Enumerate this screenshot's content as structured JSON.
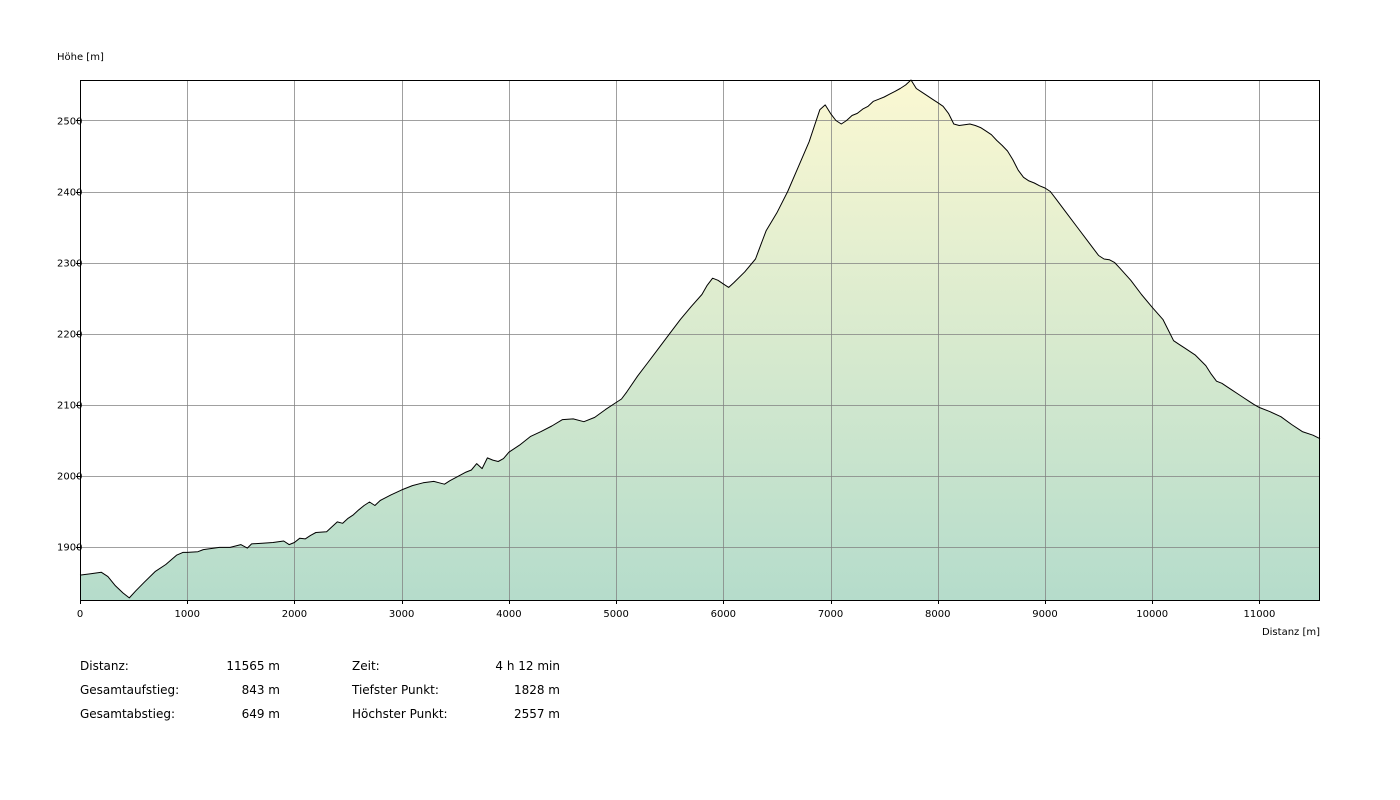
{
  "chart_data": {
    "type": "area",
    "ylabel": "Höhe [m]",
    "xlabel": "Distanz [m]",
    "xlim": [
      0,
      11565
    ],
    "ylim": [
      1825,
      2557
    ],
    "x_ticks": [
      0,
      1000,
      2000,
      3000,
      4000,
      5000,
      6000,
      7000,
      8000,
      9000,
      10000,
      11000
    ],
    "y_ticks": [
      1900,
      2000,
      2100,
      2200,
      2300,
      2400,
      2500
    ],
    "grid": true,
    "colors": {
      "fill_top": "#fbf8d2",
      "fill_bottom": "#b5dccb",
      "line": "#000000",
      "grid": "#808080"
    },
    "series": [
      {
        "x": [
          0,
          100,
          200,
          260,
          330,
          400,
          460,
          520,
          600,
          700,
          800,
          900,
          960,
          1000,
          1100,
          1150,
          1200,
          1300,
          1400,
          1450,
          1500,
          1560,
          1600,
          1700,
          1800,
          1900,
          1950,
          2000,
          2050,
          2100,
          2150,
          2200,
          2300,
          2350,
          2400,
          2450,
          2500,
          2550,
          2600,
          2650,
          2700,
          2750,
          2800,
          2900,
          3000,
          3100,
          3200,
          3300,
          3350,
          3400,
          3450,
          3500,
          3600,
          3650,
          3700,
          3750,
          3800,
          3850,
          3900,
          3950,
          4000,
          4100,
          4200,
          4300,
          4400,
          4500,
          4600,
          4700,
          4800,
          4900,
          5000,
          5050,
          5100,
          5200,
          5300,
          5400,
          5500,
          5600,
          5700,
          5800,
          5850,
          5900,
          5950,
          6000,
          6050,
          6100,
          6200,
          6300,
          6350,
          6400,
          6500,
          6600,
          6700,
          6800,
          6900,
          6950,
          7000,
          7050,
          7100,
          7150,
          7200,
          7250,
          7300,
          7350,
          7400,
          7450,
          7500,
          7550,
          7600,
          7650,
          7700,
          7750,
          7800,
          7850,
          7900,
          7950,
          8000,
          8050,
          8100,
          8150,
          8200,
          8250,
          8300,
          8350,
          8400,
          8450,
          8500,
          8550,
          8600,
          8650,
          8700,
          8750,
          8800,
          8850,
          8900,
          8950,
          9000,
          9050,
          9100,
          9200,
          9300,
          9400,
          9500,
          9550,
          9600,
          9650,
          9700,
          9800,
          9900,
          10000,
          10100,
          10150,
          10200,
          10250,
          10300,
          10400,
          10500,
          10550,
          10600,
          10650,
          10700,
          10750,
          10800,
          10850,
          10900,
          10950,
          11000,
          11100,
          11200,
          11300,
          11400,
          11500,
          11565
        ],
        "values": [
          1860,
          1862,
          1864,
          1858,
          1845,
          1835,
          1828,
          1838,
          1850,
          1865,
          1875,
          1888,
          1892,
          1892,
          1893,
          1896,
          1897,
          1899,
          1899,
          1901,
          1903,
          1898,
          1904,
          1905,
          1906,
          1908,
          1903,
          1906,
          1912,
          1911,
          1916,
          1920,
          1921,
          1928,
          1935,
          1933,
          1940,
          1945,
          1952,
          1958,
          1963,
          1958,
          1965,
          1973,
          1980,
          1986,
          1990,
          1992,
          1990,
          1988,
          1993,
          1997,
          2005,
          2008,
          2017,
          2010,
          2025,
          2022,
          2020,
          2024,
          2033,
          2043,
          2055,
          2062,
          2070,
          2079,
          2080,
          2076,
          2082,
          2093,
          2103,
          2108,
          2118,
          2140,
          2160,
          2180,
          2200,
          2220,
          2238,
          2255,
          2268,
          2278,
          2275,
          2270,
          2265,
          2272,
          2287,
          2305,
          2325,
          2345,
          2370,
          2400,
          2435,
          2470,
          2515,
          2522,
          2510,
          2500,
          2495,
          2500,
          2507,
          2510,
          2516,
          2520,
          2527,
          2530,
          2533,
          2537,
          2541,
          2545,
          2550,
          2557,
          2545,
          2540,
          2535,
          2530,
          2525,
          2520,
          2510,
          2495,
          2493,
          2494,
          2495,
          2493,
          2490,
          2485,
          2480,
          2472,
          2465,
          2457,
          2445,
          2430,
          2420,
          2415,
          2412,
          2408,
          2405,
          2400,
          2390,
          2370,
          2350,
          2330,
          2310,
          2305,
          2304,
          2300,
          2292,
          2275,
          2255,
          2237,
          2220,
          2205,
          2190,
          2185,
          2180,
          2170,
          2155,
          2143,
          2133,
          2130,
          2125,
          2120,
          2115,
          2110,
          2105,
          2100,
          2096,
          2090,
          2083,
          2072,
          2062,
          2057,
          2052
        ]
      }
    ]
  },
  "stats": {
    "left": [
      {
        "label": "Distanz:",
        "value": "11565 m"
      },
      {
        "label": "Gesamtaufstieg:",
        "value": "843 m"
      },
      {
        "label": "Gesamtabstieg:",
        "value": "649 m"
      }
    ],
    "right": [
      {
        "label": "Zeit:",
        "value": "4 h 12 min"
      },
      {
        "label": "Tiefster Punkt:",
        "value": "1828 m"
      },
      {
        "label": "Höchster Punkt:",
        "value": "2557 m"
      }
    ]
  }
}
